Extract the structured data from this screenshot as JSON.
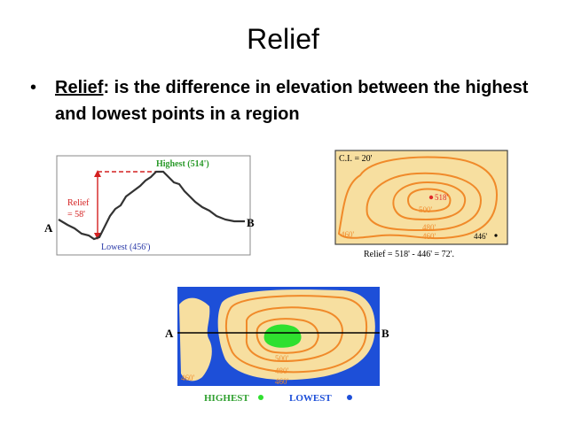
{
  "slide": {
    "title": "Relief",
    "bullet_symbol": "•",
    "bullet_term": "Relief",
    "bullet_body": ": is the difference in elevation between the highest and lowest points in a region"
  },
  "profile_figure": {
    "highest_label": "Highest (514')",
    "lowest_label": "Lowest (456')",
    "relief_label_1": "Relief",
    "relief_label_2": "= 58'",
    "point_a": "A",
    "point_b": "B",
    "colors": {
      "highest": "#2a9a2a",
      "lowest": "#2a3aa8",
      "relief": "#d42020"
    }
  },
  "contour_figure": {
    "interval": "C.I. = 20'",
    "peak_label": "518'",
    "label_500": "500'",
    "label_480": "480'",
    "label_460_center": "460'",
    "label_460_left": "460'",
    "corner_label": "446'",
    "relief_caption": "Relief  =  518' - 446' = 72'.",
    "colors": {
      "land": "#f7dfa0",
      "contour": "#f08a2a",
      "point": "#e0282a"
    }
  },
  "lake_figure": {
    "point_a": "A",
    "point_b": "B",
    "label_500": "500'",
    "label_480": "480'",
    "label_460_center": "460'",
    "label_460_left": "460'",
    "highest_legend": "HIGHEST",
    "lowest_legend": "LOWEST",
    "colors": {
      "water": "#1d4fd8",
      "land": "#f7dfa0",
      "contour": "#f08a2a",
      "highest": "#2fe02f",
      "lowest": "#1d4fd8"
    }
  }
}
